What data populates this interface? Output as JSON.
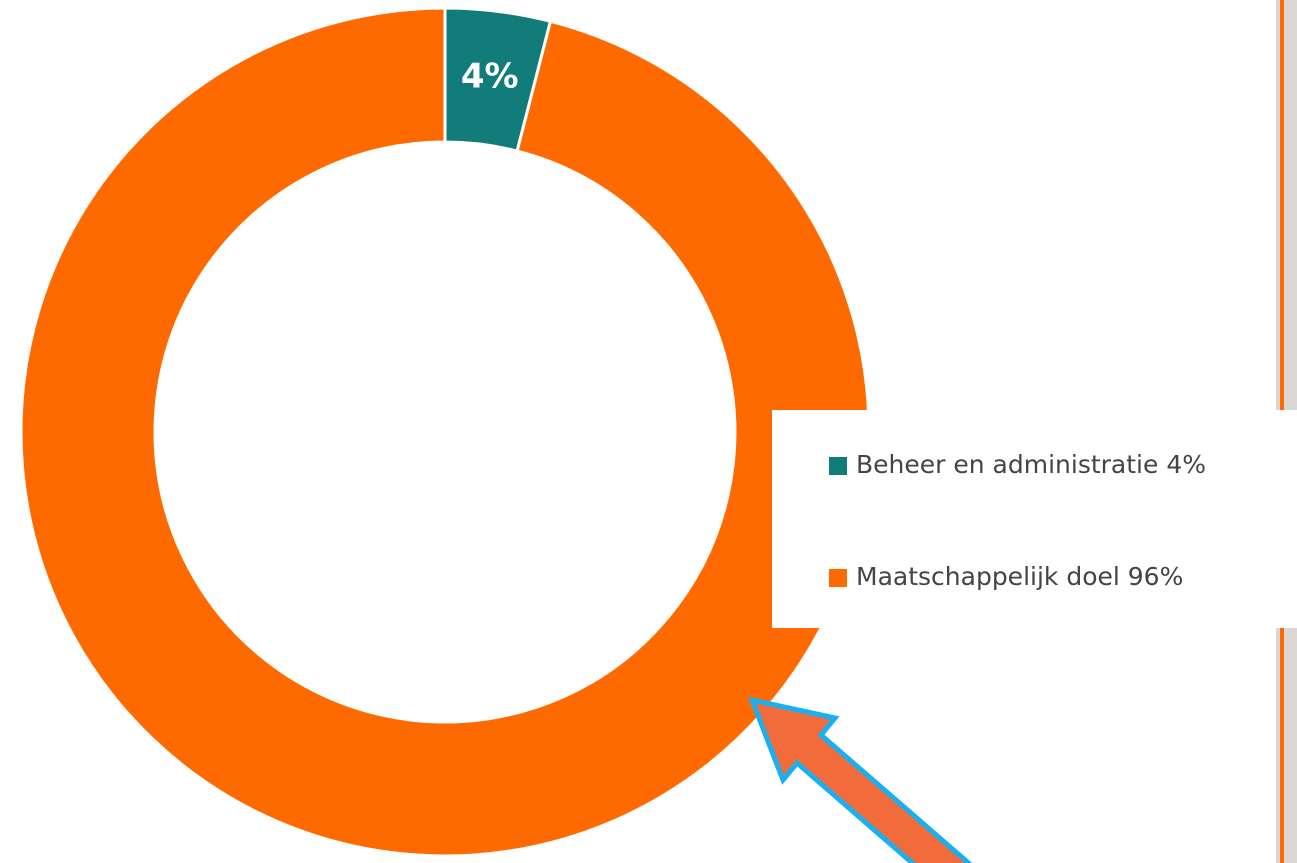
{
  "chart_data": {
    "type": "donut",
    "categories": [
      "Beheer en administratie 4%",
      "Maatschappelijk doel 96%"
    ],
    "values": [
      4,
      96
    ],
    "value_labels": [
      "4%",
      null
    ],
    "colors": [
      "#117c7a",
      "#ff6a00"
    ],
    "legend": "right"
  }
}
